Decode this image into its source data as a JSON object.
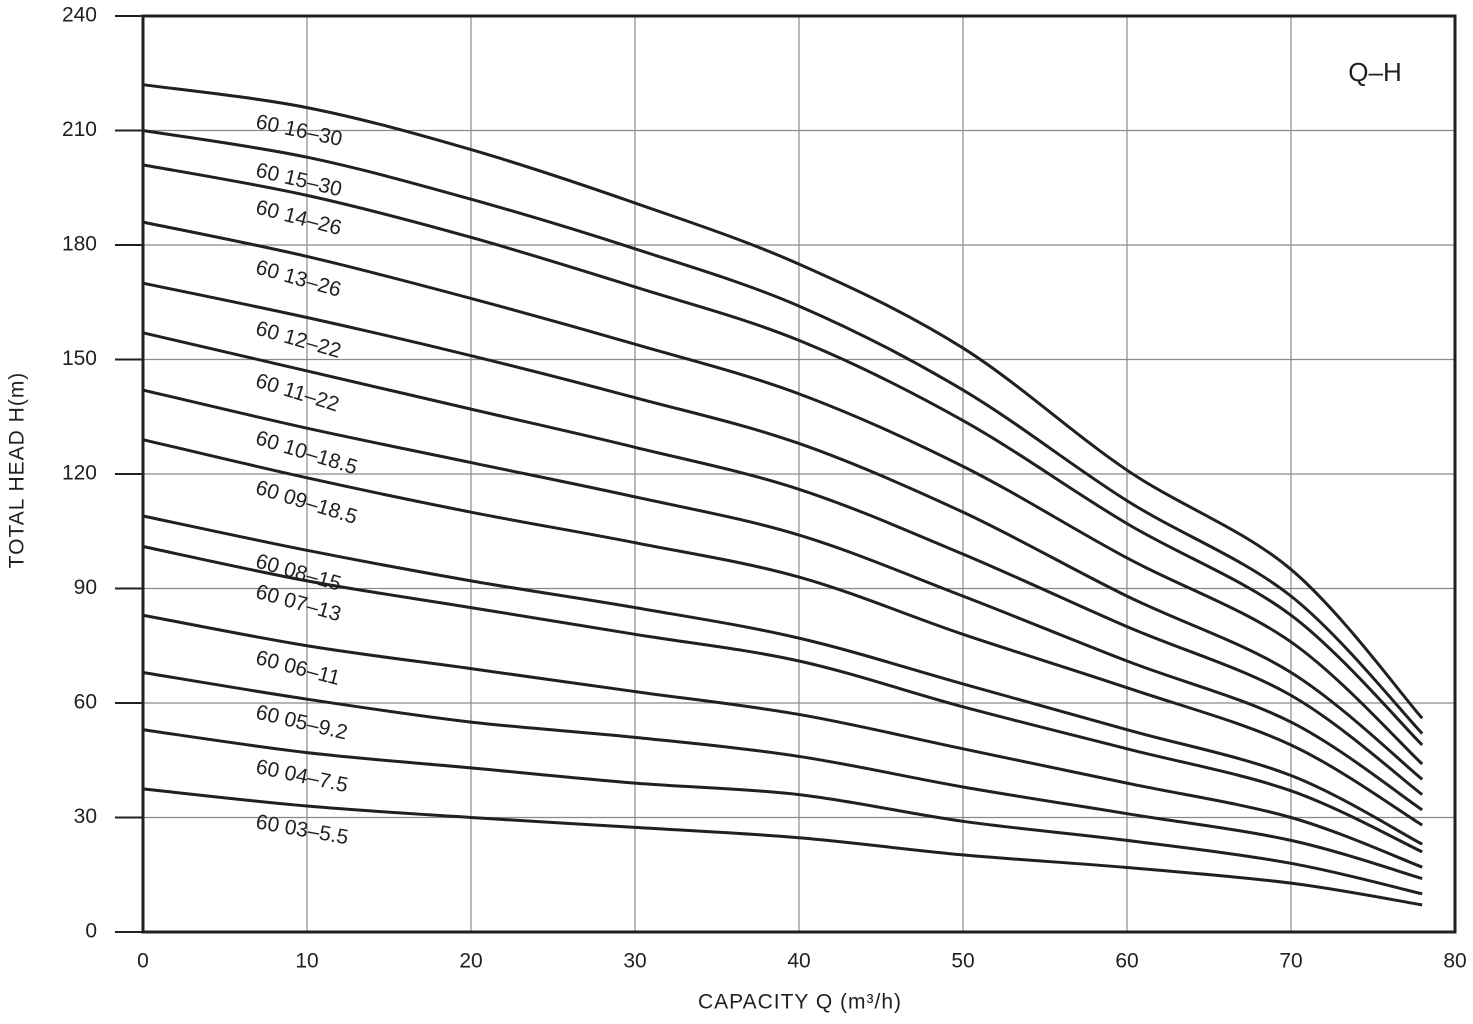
{
  "chart_data": {
    "type": "line",
    "annotation": "Q–H",
    "xlabel": "CAPACITY  Q (m³/h)",
    "ylabel": "TOTAL HEAD  H(m)",
    "x": [
      0,
      10,
      20,
      30,
      40,
      50,
      60,
      70,
      78
    ],
    "xlim": [
      0,
      80
    ],
    "xticks": [
      0,
      10,
      20,
      30,
      40,
      50,
      60,
      70,
      80
    ],
    "ylim": [
      0,
      240
    ],
    "yticks": [
      0,
      30,
      60,
      90,
      120,
      150,
      180,
      210,
      240
    ],
    "grid": true,
    "series": [
      {
        "name": "60 16–30",
        "color": "#231f20",
        "values": [
          222,
          216,
          205,
          191,
          175,
          153,
          121,
          95,
          56
        ]
      },
      {
        "name": "60 15–30",
        "color": "#231f20",
        "values": [
          210,
          203,
          192,
          179,
          164,
          142,
          113,
          88,
          52
        ]
      },
      {
        "name": "60 14–26",
        "color": "#231f20",
        "values": [
          201,
          193,
          182,
          169,
          155,
          134,
          107,
          83,
          49
        ]
      },
      {
        "name": "60 13–26",
        "color": "#231f20",
        "values": [
          186,
          177,
          166,
          154,
          141,
          122,
          98,
          76,
          44
        ]
      },
      {
        "name": "60 12–22",
        "color": "#231f20",
        "values": [
          170,
          161,
          151,
          140,
          128,
          110,
          88,
          68,
          40
        ]
      },
      {
        "name": "60 11–22",
        "color": "#231f20",
        "values": [
          157,
          147,
          137,
          127,
          116,
          99,
          80,
          62,
          36
        ]
      },
      {
        "name": "60 10–18.5",
        "color": "#231f20",
        "values": [
          142,
          132,
          123,
          114,
          104,
          88,
          71,
          55,
          32
        ]
      },
      {
        "name": "60 09–18.5",
        "color": "#231f20",
        "values": [
          129,
          119,
          110,
          102,
          93,
          78,
          64,
          49,
          28
        ]
      },
      {
        "name": "60 08–15",
        "color": "#231f20",
        "values": [
          109,
          100,
          92,
          85,
          77,
          65,
          53,
          41,
          23
        ]
      },
      {
        "name": "60 07–13",
        "color": "#231f20",
        "values": [
          101,
          92,
          85,
          78,
          71,
          59,
          48,
          37,
          21
        ]
      },
      {
        "name": "60 06–11",
        "color": "#231f20",
        "values": [
          83,
          75,
          69,
          63,
          57,
          48,
          39,
          30,
          17
        ]
      },
      {
        "name": "60 05–9.2",
        "color": "#231f20",
        "values": [
          68,
          61,
          55,
          51,
          46,
          38,
          31,
          24,
          14
        ]
      },
      {
        "name": "60 04–7.5",
        "color": "#231f20",
        "values": [
          53,
          47,
          43,
          39,
          36,
          29,
          24,
          18,
          10
        ]
      },
      {
        "name": "60 03–5.5",
        "color": "#231f20",
        "values": [
          37.5,
          33,
          30,
          27.4,
          24.7,
          20.2,
          16.9,
          12.8,
          7.1
        ]
      }
    ]
  }
}
